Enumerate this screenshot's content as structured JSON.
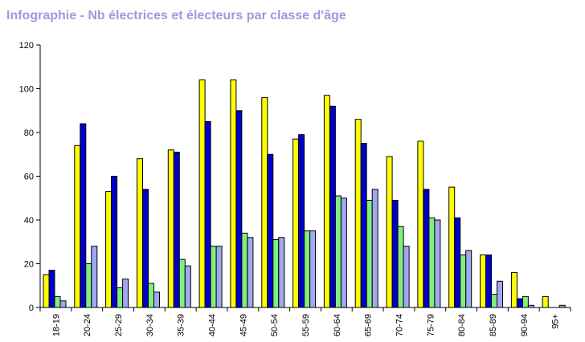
{
  "title": "Infographie - Nb électrices et électeurs par classe d'âge",
  "colors": {
    "title": "#9b9bdc",
    "axis": "#000000"
  },
  "chart_data": {
    "type": "bar",
    "title": "Infographie - Nb électrices et électeurs par classe d'âge",
    "xlabel": "",
    "ylabel": "",
    "ylim": [
      0,
      120
    ],
    "yticks": [
      0,
      20,
      40,
      60,
      80,
      100,
      120
    ],
    "grid": false,
    "categories": [
      "18-19",
      "20-24",
      "25-29",
      "30-34",
      "35-39",
      "40-44",
      "45-49",
      "50-54",
      "55-59",
      "60-64",
      "65-69",
      "70-74",
      "75-79",
      "80-84",
      "85-89",
      "90-94",
      "95+"
    ],
    "series": [
      {
        "color": "#ffff00",
        "values": [
          15,
          74,
          53,
          68,
          72,
          104,
          104,
          96,
          77,
          97,
          86,
          69,
          76,
          55,
          24,
          16,
          5
        ]
      },
      {
        "color": "#0000cc",
        "values": [
          17,
          84,
          60,
          54,
          71,
          85,
          90,
          70,
          79,
          92,
          75,
          49,
          54,
          41,
          24,
          4,
          0
        ]
      },
      {
        "color": "#80ee80",
        "values": [
          5,
          20,
          9,
          11,
          22,
          28,
          34,
          31,
          35,
          51,
          49,
          37,
          41,
          24,
          6,
          5,
          0
        ]
      },
      {
        "color": "#a0a8f0",
        "values": [
          3,
          28,
          13,
          7,
          19,
          28,
          32,
          32,
          35,
          50,
          54,
          28,
          40,
          26,
          12,
          1,
          1
        ]
      }
    ]
  }
}
